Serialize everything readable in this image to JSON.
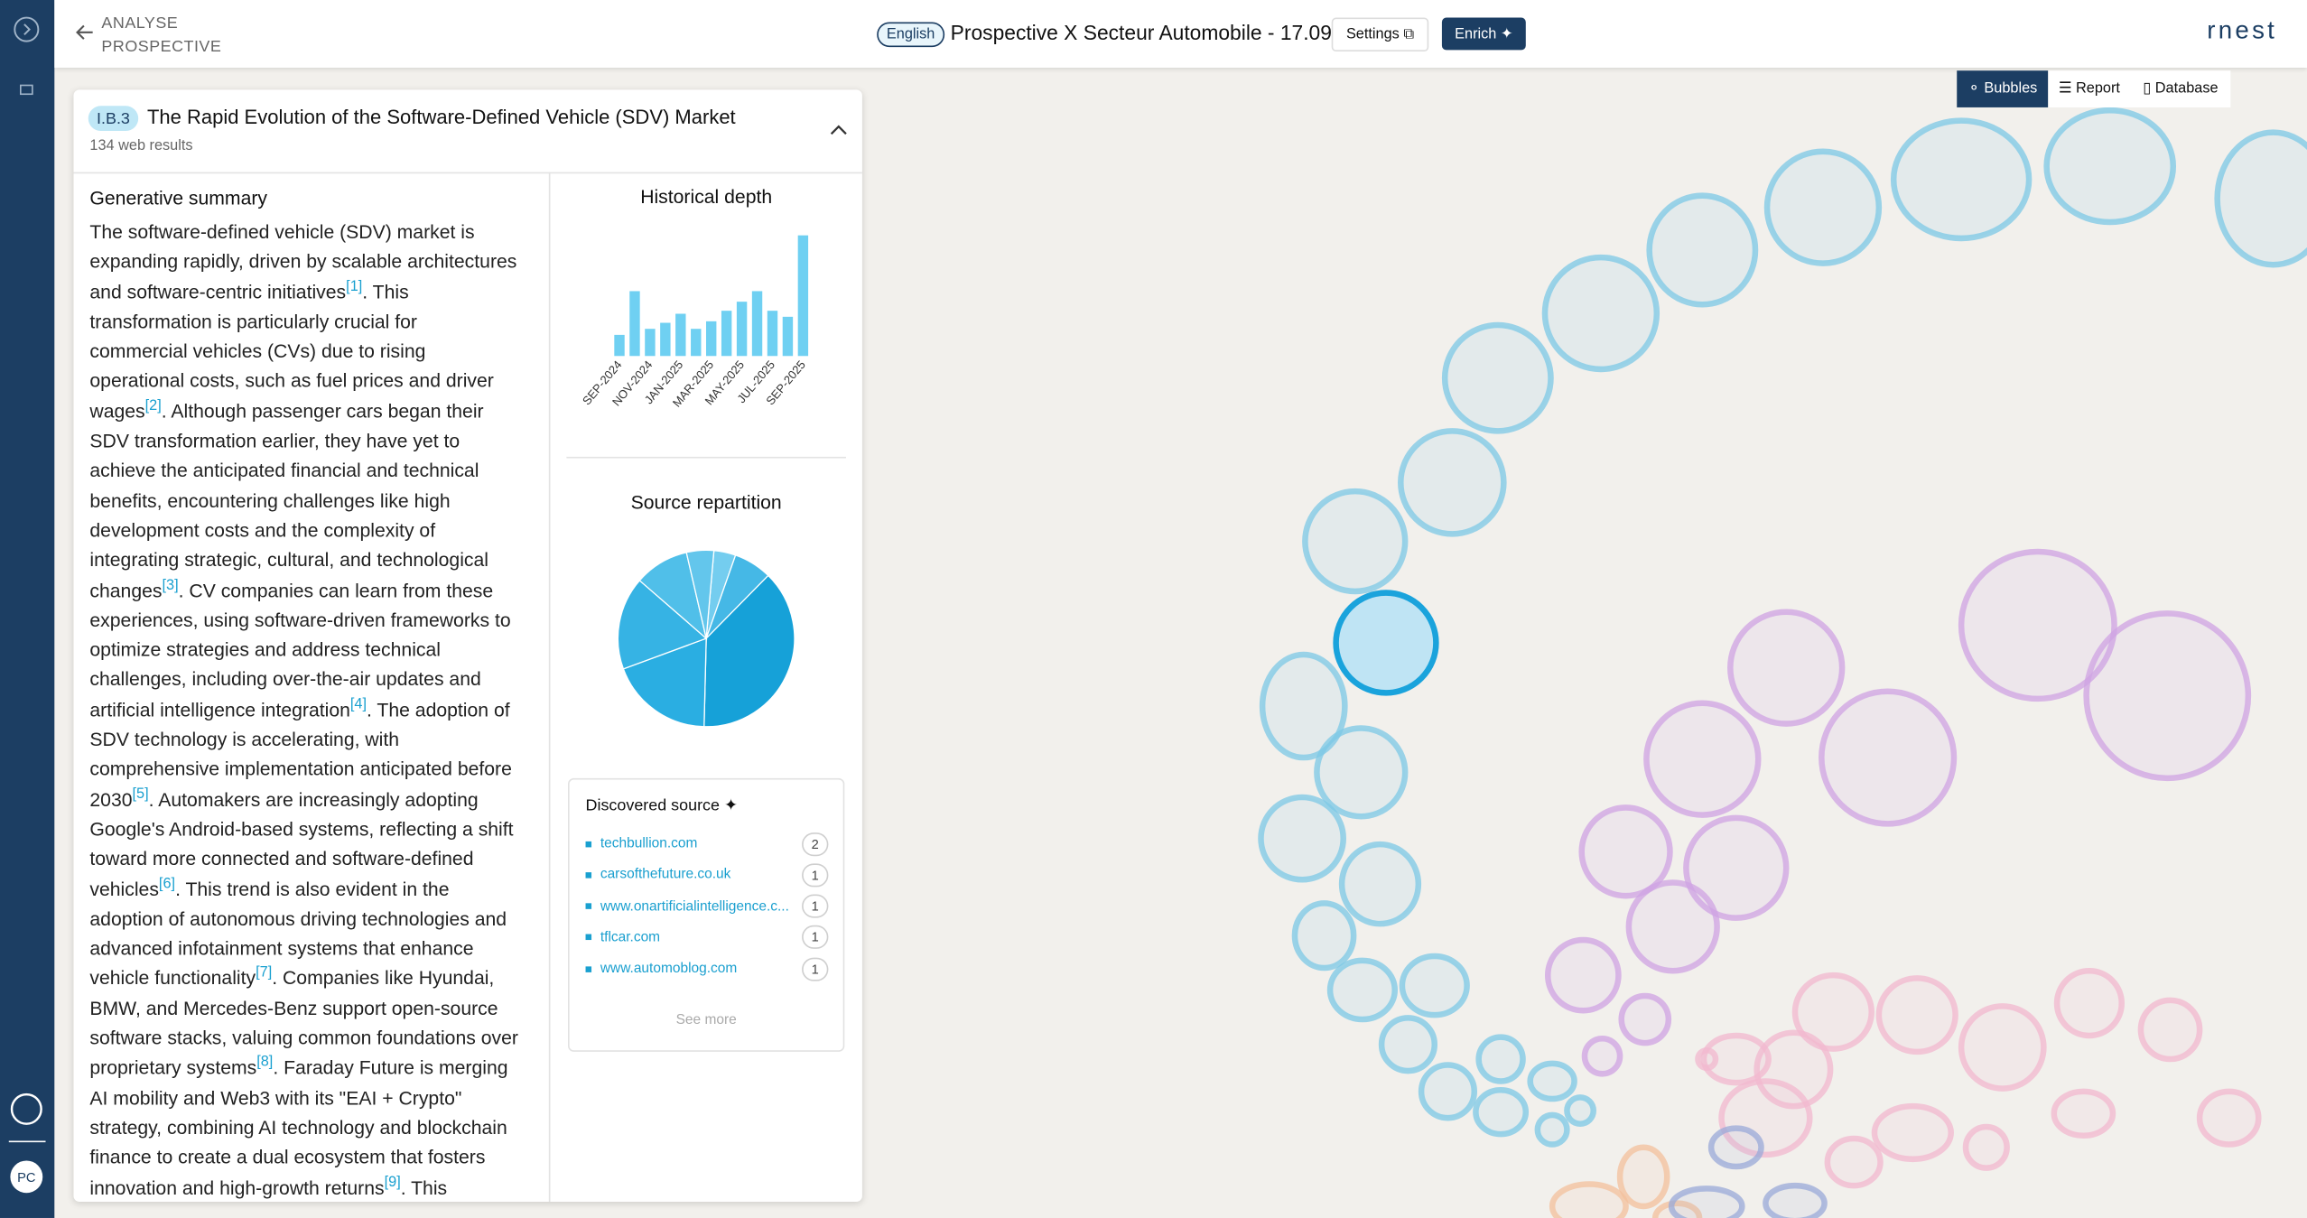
{
  "header": {
    "back_label": "ANALYSE PROSPECTIVE",
    "language": "English",
    "title": "Prospective X Secteur Automobile - 17.09",
    "settings": "Settings",
    "enrich": "Enrich",
    "logo": "rnest"
  },
  "view_tabs": [
    "Bubbles",
    "Report",
    "Database"
  ],
  "sidebar": {
    "avatar": "PC"
  },
  "panel": {
    "code": "I.B.3",
    "title": "The Rapid Evolution of the Software-Defined Vehicle (SDV) Market",
    "results": "134 web results",
    "summary_heading": "Generative summary",
    "summary": [
      {
        "text": "The software-defined vehicle (SDV) market is expanding rapidly, driven by scalable architectures and software-centric initiatives",
        "cite": "[1]"
      },
      {
        "text": ". This transformation is particularly crucial for commercial vehicles (CVs) due to rising operational costs, such as fuel prices and driver wages",
        "cite": "[2]"
      },
      {
        "text": ". Although passenger cars began their SDV transformation earlier, they have yet to achieve the anticipated financial and technical benefits, encountering challenges like high development costs and the complexity of integrating strategic, cultural, and technological changes",
        "cite": "[3]"
      },
      {
        "text": ". CV companies can learn from these experiences, using software-driven frameworks to optimize strategies and address technical challenges, including over-the-air updates and artificial intelligence integration",
        "cite": "[4]"
      },
      {
        "text": ". The adoption of SDV technology is accelerating, with comprehensive implementation anticipated before 2030",
        "cite": "[5]"
      },
      {
        "text": ". Automakers are increasingly adopting Google's Android-based systems, reflecting a shift toward more connected and software-defined vehicles",
        "cite": "[6]"
      },
      {
        "text": ". This trend is also evident in the adoption of autonomous driving technologies and advanced infotainment systems that enhance vehicle functionality",
        "cite": "[7]"
      },
      {
        "text": ". Companies like Hyundai, BMW, and Mercedes-Benz support open-source software stacks, valuing common foundations over proprietary systems",
        "cite": "[8]"
      },
      {
        "text": ". Faraday Future is merging AI mobility and Web3 with its \"EAI + Crypto\" strategy, combining AI technology and blockchain finance to create a dual ecosystem that fosters innovation and high-growth returns",
        "cite": "[9]"
      },
      {
        "text": ". This includes initiatives like tokenized vehicle sales and"
      }
    ]
  },
  "chart_data": [
    {
      "type": "bar",
      "title": "Historical depth",
      "color": "#6fd0f2",
      "categories": [
        "SEP-2024",
        null,
        "NOV-2024",
        null,
        "JAN-2025",
        null,
        "MAR-2025",
        null,
        "MAY-2025",
        null,
        "JUL-2025",
        null,
        "SEP-2025"
      ],
      "values": [
        14,
        43,
        18,
        22,
        28,
        18,
        23,
        30,
        36,
        43,
        30,
        26,
        80
      ]
    },
    {
      "type": "pie",
      "title": "Source repartition",
      "values": [
        4,
        7,
        38,
        19,
        17,
        10,
        5
      ],
      "colors": [
        "#74cdef",
        "#45b8e6",
        "#16a1d8",
        "#2aaee2",
        "#36b3e4",
        "#50bfe9",
        "#63c6ec"
      ]
    }
  ],
  "discovered": {
    "heading": "Discovered source",
    "sources": [
      {
        "name": "techbullion.com",
        "count": 2
      },
      {
        "name": "carsofthefuture.co.uk",
        "count": 1
      },
      {
        "name": "www.onartificialintelligence.c...",
        "count": 1
      },
      {
        "name": "tflcar.com",
        "count": 1
      },
      {
        "name": "www.automoblog.com",
        "count": 1
      }
    ],
    "see_more": "See more"
  }
}
